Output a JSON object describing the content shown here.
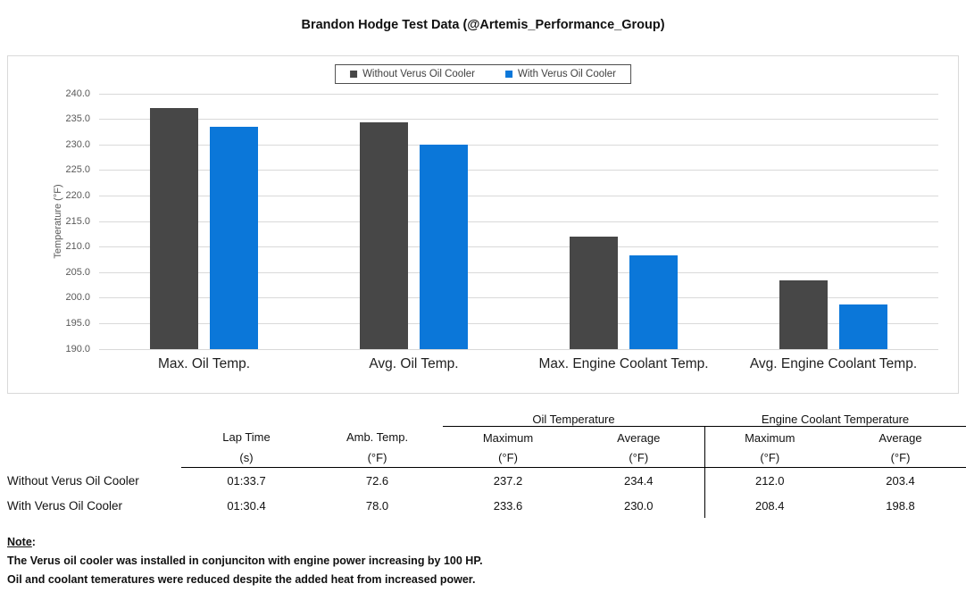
{
  "title": "Brandon Hodge Test Data (@Artemis_Performance_Group)",
  "colors": {
    "without_series": "#474747",
    "with_series": "#0b77d9",
    "gridline": "#d9d9d9",
    "axis_text": "#595959",
    "category_text": "#1f1f1f",
    "table_line": "#000000"
  },
  "chart_data": {
    "type": "bar",
    "title": "Brandon Hodge Test Data (@Artemis_Performance_Group)",
    "categories": [
      "Max. Oil Temp.",
      "Avg. Oil Temp.",
      "Max. Engine Coolant Temp.",
      "Avg. Engine Coolant Temp."
    ],
    "series": [
      {
        "name": "Without Verus Oil Cooler",
        "color": "#474747",
        "values": [
          237.2,
          234.4,
          212.0,
          203.4
        ]
      },
      {
        "name": "With Verus Oil Cooler",
        "color": "#0b77d9",
        "values": [
          233.6,
          230.0,
          208.4,
          198.8
        ]
      }
    ],
    "xlabel": "",
    "ylabel": "Temperature (°F)",
    "ylim": [
      190.0,
      240.0
    ],
    "ytick_step": 5.0,
    "ytick_format_decimals": 1,
    "grid": true,
    "legend_position": "top-center"
  },
  "table": {
    "group_headers": [
      {
        "label": "Oil Temperature"
      },
      {
        "label": "Engine Coolant Temperature"
      }
    ],
    "columns": [
      {
        "title": "Lap Time",
        "unit": "(s)"
      },
      {
        "title": "Amb. Temp.",
        "unit": "(°F)"
      },
      {
        "title": "Maximum",
        "unit": "(°F)"
      },
      {
        "title": "Average",
        "unit": "(°F)"
      },
      {
        "title": "Maximum",
        "unit": "(°F)"
      },
      {
        "title": "Average",
        "unit": "(°F)"
      }
    ],
    "rows": [
      {
        "label": "Without Verus Oil Cooler",
        "values": [
          "01:33.7",
          "72.6",
          "237.2",
          "234.4",
          "212.0",
          "203.4"
        ]
      },
      {
        "label": "With Verus Oil Cooler",
        "values": [
          "01:30.4",
          "78.0",
          "233.6",
          "230.0",
          "208.4",
          "198.8"
        ]
      }
    ]
  },
  "note": {
    "heading": "Note",
    "colon": ":",
    "lines": [
      "The Verus oil cooler was installed in conjunciton with engine power increasing by 100 HP.",
      "Oil and coolant temeratures were reduced despite the added heat from increased power."
    ]
  }
}
